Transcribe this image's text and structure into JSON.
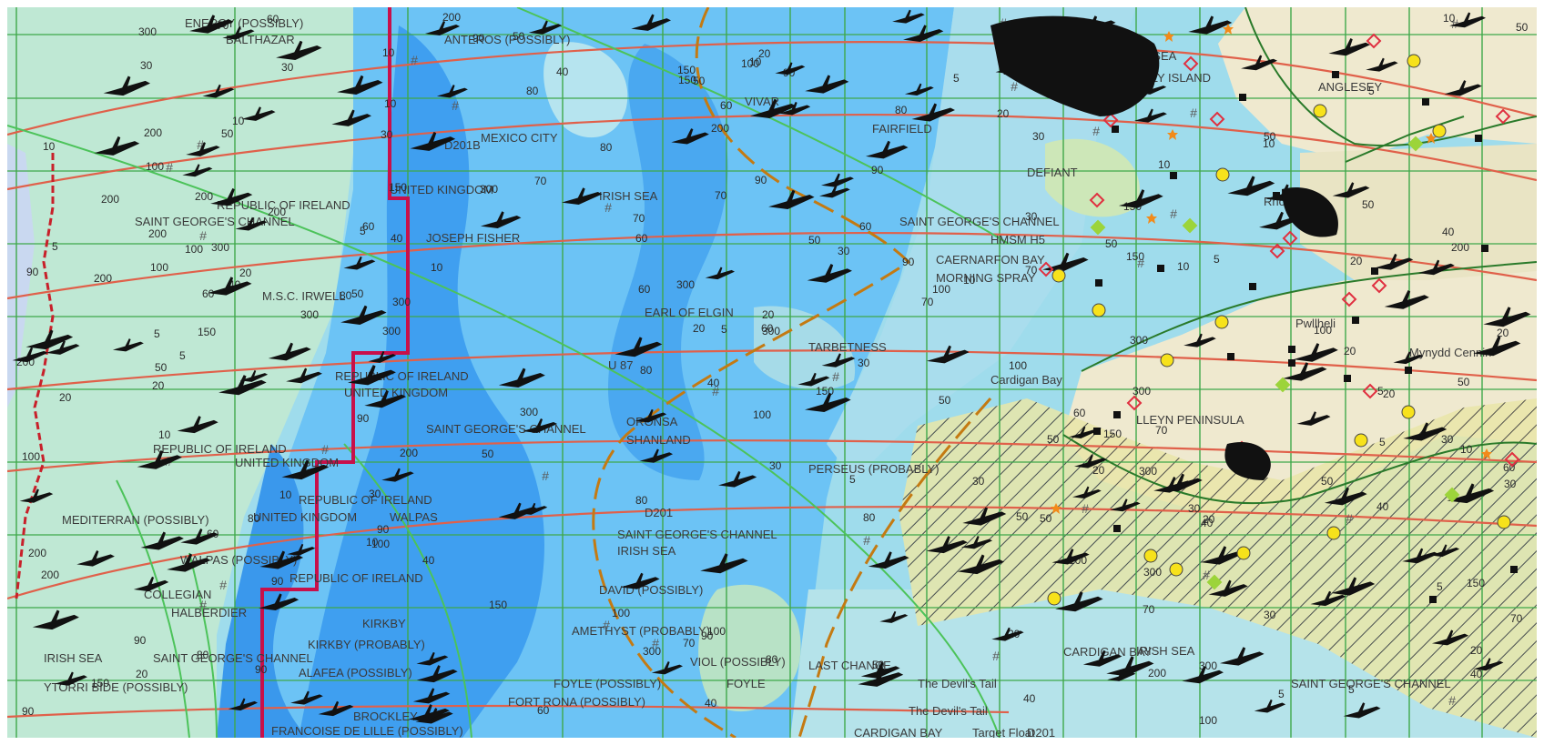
{
  "map": {
    "colors": {
      "deep_water": "#3f9ff0",
      "mid_water": "#6cc3f5",
      "shallow_water": "#9fdcec",
      "pale_water": "#bfe8e6",
      "land": "#efe9cf",
      "green_land": "#c8e4b0",
      "grid_line": "#4caf50",
      "red_line": "#e05a46",
      "border_line": "#c8104a",
      "brown_line": "#c47a12"
    },
    "labels": [
      "ENERGY (POSSIBLY)",
      "BALTHAZAR",
      "ANTEROS (POSSIBLY)",
      "IRISH SEA",
      "HOLLY ISLAND",
      "ANGLESEY",
      "VIVAR",
      "FAIRFIELD",
      "MEXICO CITY",
      "D201B",
      "IRISH SEA",
      "DEFIANT",
      "UNITED KINGDOM",
      "REPUBLIC OF IRELAND",
      "SAINT GEORGE'S CHANNEL",
      "JOSEPH FISHER",
      "SAINT GEORGE'S CHANNEL",
      "HMSM H5",
      "CAERNARFON BAY",
      "MORNING SPRAY",
      "M.S.C. IRWELL",
      "EARL OF ELGIN",
      "TARBETNESS",
      "REPUBLIC OF IRELAND",
      "UNITED KINGDOM",
      "SAINT GEORGE'S CHANNEL",
      "ORONSA",
      "SHANLAND",
      "REPUBLIC OF IRELAND",
      "UNITED KINGDOM",
      "PERSEUS (PROBABLY)",
      "MEDITERRAN (POSSIBLY)",
      "REPUBLIC OF IRELAND",
      "UNITED KINGDOM",
      "WALPAS",
      "SAINT GEORGE'S CHANNEL",
      "IRISH SEA",
      "WALPAS (POSSIBLY)",
      "REPUBLIC OF IRELAND",
      "COLLEGIAN",
      "HALBERDIER",
      "AMETHYST (PROBABLY)",
      "DAVID (POSSIBLY)",
      "KIRKBY",
      "KIRKBY (PROBABLY)",
      "IRISH SEA",
      "SAINT GEORGE'S CHANNEL",
      "ALAFEA (POSSIBLY)",
      "VIOL (POSSIBLY)",
      "LAST CHANCE",
      "YTORRI BIDE (POSSIBLY)",
      "FOYLE (POSSIBLY)",
      "FOYLE",
      "FORT RONA (POSSIBLY)",
      "The Devil's Tail",
      "The Devil's Tail",
      "CARDIGAN BAY",
      "IRISH SEA",
      "SAINT GEORGE'S CHANNEL",
      "FRANCOISE DE LILLE (POSSIBLY)",
      "BROCKLEY",
      "CARDIGAN BAY",
      "Target Float",
      "D201",
      "LLEYN PENINSULA",
      "Cardigan Bay",
      "Mynydd Cennin",
      "Rhosneigr",
      "Pwllheli",
      "U 87",
      "D201"
    ],
    "depth_numbers": [
      "50",
      "100",
      "30",
      "20",
      "10",
      "5",
      "200",
      "300",
      "90",
      "80",
      "70",
      "60",
      "40",
      "150"
    ],
    "hash_symbol": "#",
    "wreck_icon": "wreck-icon",
    "marker_icons": [
      "yellow-circle-icon",
      "black-square-icon",
      "orange-star-icon",
      "green-diamond-icon",
      "red-diamond-icon"
    ]
  }
}
